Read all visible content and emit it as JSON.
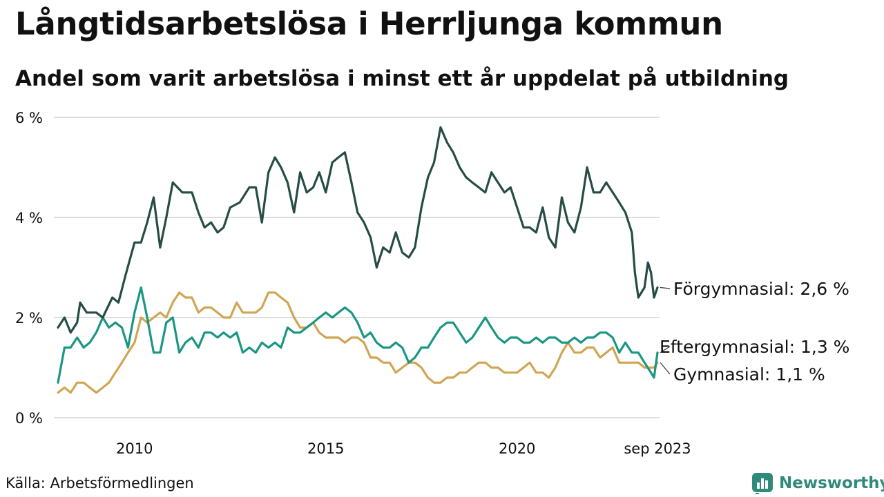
{
  "title": "Långtidsarbetslösa i Herrljunga kommun",
  "subtitle": "Andel som varit arbetslösa i minst ett år uppdelat på utbildning",
  "source": "Källa: Arbetsförmedlingen",
  "brand": "Newsworthy",
  "colors": {
    "forgymnasial": "#264d45",
    "eftergymnasial": "#1a9682",
    "gymnasial": "#d0a554",
    "grid": "#dddddd",
    "brand": "#2f8a7a"
  },
  "chart_data": {
    "type": "line",
    "title": "Långtidsarbetslösa i Herrljunga kommun",
    "xlabel": "",
    "ylabel": "",
    "ylim": [
      0,
      6
    ],
    "xlim": [
      2008.0,
      2023.67
    ],
    "y_ticks": [
      {
        "value": 0,
        "label": "0 %"
      },
      {
        "value": 2,
        "label": "2 %"
      },
      {
        "value": 4,
        "label": "4 %"
      },
      {
        "value": 6,
        "label": "6 %"
      }
    ],
    "x_ticks": [
      {
        "value": 2010.0,
        "label": "2010"
      },
      {
        "value": 2015.0,
        "label": "2015"
      },
      {
        "value": 2020.0,
        "label": "2020"
      },
      {
        "value": 2023.67,
        "label": "sep 2023"
      }
    ],
    "grid": true,
    "series": [
      {
        "key": "forgymnasial",
        "name": "Förgymnasial",
        "label": "Förgymnasial: 2,6 %",
        "last_value": 2.6,
        "points": [
          [
            2008.0,
            1.8
          ],
          [
            2008.17,
            2.0
          ],
          [
            2008.33,
            1.7
          ],
          [
            2008.5,
            1.9
          ],
          [
            2008.58,
            2.3
          ],
          [
            2008.75,
            2.1
          ],
          [
            2009.0,
            2.1
          ],
          [
            2009.17,
            2.0
          ],
          [
            2009.42,
            2.4
          ],
          [
            2009.58,
            2.3
          ],
          [
            2009.75,
            2.8
          ],
          [
            2010.0,
            3.5
          ],
          [
            2010.17,
            3.5
          ],
          [
            2010.33,
            3.9
          ],
          [
            2010.5,
            4.4
          ],
          [
            2010.67,
            3.4
          ],
          [
            2010.83,
            4.0
          ],
          [
            2011.0,
            4.7
          ],
          [
            2011.25,
            4.5
          ],
          [
            2011.5,
            4.5
          ],
          [
            2011.67,
            4.1
          ],
          [
            2011.83,
            3.8
          ],
          [
            2012.0,
            3.9
          ],
          [
            2012.17,
            3.7
          ],
          [
            2012.33,
            3.8
          ],
          [
            2012.5,
            4.2
          ],
          [
            2012.75,
            4.3
          ],
          [
            2013.0,
            4.6
          ],
          [
            2013.17,
            4.6
          ],
          [
            2013.33,
            3.9
          ],
          [
            2013.5,
            4.9
          ],
          [
            2013.67,
            5.2
          ],
          [
            2013.83,
            5.0
          ],
          [
            2014.0,
            4.7
          ],
          [
            2014.17,
            4.1
          ],
          [
            2014.33,
            4.9
          ],
          [
            2014.5,
            4.5
          ],
          [
            2014.67,
            4.6
          ],
          [
            2014.83,
            4.9
          ],
          [
            2015.0,
            4.5
          ],
          [
            2015.17,
            5.1
          ],
          [
            2015.33,
            5.2
          ],
          [
            2015.5,
            5.3
          ],
          [
            2015.67,
            4.7
          ],
          [
            2015.83,
            4.1
          ],
          [
            2016.0,
            3.9
          ],
          [
            2016.17,
            3.6
          ],
          [
            2016.33,
            3.0
          ],
          [
            2016.5,
            3.4
          ],
          [
            2016.67,
            3.3
          ],
          [
            2016.83,
            3.7
          ],
          [
            2017.0,
            3.3
          ],
          [
            2017.17,
            3.2
          ],
          [
            2017.33,
            3.4
          ],
          [
            2017.5,
            4.2
          ],
          [
            2017.67,
            4.8
          ],
          [
            2017.83,
            5.1
          ],
          [
            2018.0,
            5.8
          ],
          [
            2018.17,
            5.5
          ],
          [
            2018.33,
            5.3
          ],
          [
            2018.5,
            5.0
          ],
          [
            2018.67,
            4.8
          ],
          [
            2018.83,
            4.7
          ],
          [
            2019.0,
            4.6
          ],
          [
            2019.17,
            4.5
          ],
          [
            2019.33,
            4.9
          ],
          [
            2019.5,
            4.7
          ],
          [
            2019.67,
            4.5
          ],
          [
            2019.83,
            4.6
          ],
          [
            2020.0,
            4.2
          ],
          [
            2020.17,
            3.8
          ],
          [
            2020.33,
            3.8
          ],
          [
            2020.5,
            3.7
          ],
          [
            2020.67,
            4.2
          ],
          [
            2020.83,
            3.6
          ],
          [
            2021.0,
            3.4
          ],
          [
            2021.17,
            4.4
          ],
          [
            2021.33,
            3.9
          ],
          [
            2021.5,
            3.7
          ],
          [
            2021.67,
            4.2
          ],
          [
            2021.83,
            5.0
          ],
          [
            2022.0,
            4.5
          ],
          [
            2022.17,
            4.5
          ],
          [
            2022.33,
            4.7
          ],
          [
            2022.5,
            4.5
          ],
          [
            2022.67,
            4.3
          ],
          [
            2022.83,
            4.1
          ],
          [
            2023.0,
            3.7
          ],
          [
            2023.08,
            2.9
          ],
          [
            2023.17,
            2.4
          ],
          [
            2023.33,
            2.6
          ],
          [
            2023.42,
            3.1
          ],
          [
            2023.5,
            2.9
          ],
          [
            2023.58,
            2.4
          ],
          [
            2023.67,
            2.6
          ]
        ]
      },
      {
        "key": "eftergymnasial",
        "name": "Eftergymnasial",
        "label": "Eftergymnasial: 1,3 %",
        "last_value": 1.3,
        "points": [
          [
            2008.0,
            0.7
          ],
          [
            2008.17,
            1.4
          ],
          [
            2008.33,
            1.4
          ],
          [
            2008.5,
            1.6
          ],
          [
            2008.67,
            1.4
          ],
          [
            2008.83,
            1.5
          ],
          [
            2009.0,
            1.7
          ],
          [
            2009.17,
            2.0
          ],
          [
            2009.33,
            1.8
          ],
          [
            2009.5,
            1.9
          ],
          [
            2009.67,
            1.8
          ],
          [
            2009.83,
            1.4
          ],
          [
            2010.0,
            2.1
          ],
          [
            2010.17,
            2.6
          ],
          [
            2010.33,
            2.0
          ],
          [
            2010.5,
            1.3
          ],
          [
            2010.67,
            1.3
          ],
          [
            2010.83,
            1.9
          ],
          [
            2011.0,
            2.0
          ],
          [
            2011.17,
            1.3
          ],
          [
            2011.33,
            1.5
          ],
          [
            2011.5,
            1.6
          ],
          [
            2011.67,
            1.4
          ],
          [
            2011.83,
            1.7
          ],
          [
            2012.0,
            1.7
          ],
          [
            2012.17,
            1.6
          ],
          [
            2012.33,
            1.7
          ],
          [
            2012.5,
            1.6
          ],
          [
            2012.67,
            1.7
          ],
          [
            2012.83,
            1.3
          ],
          [
            2013.0,
            1.4
          ],
          [
            2013.17,
            1.3
          ],
          [
            2013.33,
            1.5
          ],
          [
            2013.5,
            1.4
          ],
          [
            2013.67,
            1.5
          ],
          [
            2013.83,
            1.4
          ],
          [
            2014.0,
            1.8
          ],
          [
            2014.17,
            1.7
          ],
          [
            2014.33,
            1.7
          ],
          [
            2014.5,
            1.8
          ],
          [
            2014.67,
            1.9
          ],
          [
            2014.83,
            2.0
          ],
          [
            2015.0,
            2.1
          ],
          [
            2015.17,
            2.0
          ],
          [
            2015.33,
            2.1
          ],
          [
            2015.5,
            2.2
          ],
          [
            2015.67,
            2.1
          ],
          [
            2015.83,
            1.9
          ],
          [
            2016.0,
            1.6
          ],
          [
            2016.17,
            1.7
          ],
          [
            2016.33,
            1.5
          ],
          [
            2016.5,
            1.4
          ],
          [
            2016.67,
            1.4
          ],
          [
            2016.83,
            1.5
          ],
          [
            2017.0,
            1.4
          ],
          [
            2017.17,
            1.1
          ],
          [
            2017.33,
            1.2
          ],
          [
            2017.5,
            1.4
          ],
          [
            2017.67,
            1.4
          ],
          [
            2017.83,
            1.6
          ],
          [
            2018.0,
            1.8
          ],
          [
            2018.17,
            1.9
          ],
          [
            2018.33,
            1.9
          ],
          [
            2018.5,
            1.7
          ],
          [
            2018.67,
            1.5
          ],
          [
            2018.83,
            1.6
          ],
          [
            2019.0,
            1.8
          ],
          [
            2019.17,
            2.0
          ],
          [
            2019.33,
            1.8
          ],
          [
            2019.5,
            1.6
          ],
          [
            2019.67,
            1.5
          ],
          [
            2019.83,
            1.6
          ],
          [
            2020.0,
            1.6
          ],
          [
            2020.17,
            1.5
          ],
          [
            2020.33,
            1.5
          ],
          [
            2020.5,
            1.6
          ],
          [
            2020.67,
            1.5
          ],
          [
            2020.83,
            1.6
          ],
          [
            2021.0,
            1.6
          ],
          [
            2021.17,
            1.5
          ],
          [
            2021.33,
            1.5
          ],
          [
            2021.5,
            1.6
          ],
          [
            2021.67,
            1.5
          ],
          [
            2021.83,
            1.6
          ],
          [
            2022.0,
            1.6
          ],
          [
            2022.17,
            1.7
          ],
          [
            2022.33,
            1.7
          ],
          [
            2022.5,
            1.6
          ],
          [
            2022.67,
            1.3
          ],
          [
            2022.83,
            1.5
          ],
          [
            2023.0,
            1.3
          ],
          [
            2023.17,
            1.3
          ],
          [
            2023.33,
            1.1
          ],
          [
            2023.5,
            0.9
          ],
          [
            2023.58,
            0.8
          ],
          [
            2023.67,
            1.3
          ]
        ]
      },
      {
        "key": "gymnasial",
        "name": "Gymnasial",
        "label": "Gymnasial: 1,1 %",
        "last_value": 1.1,
        "points": [
          [
            2008.0,
            0.5
          ],
          [
            2008.17,
            0.6
          ],
          [
            2008.33,
            0.5
          ],
          [
            2008.5,
            0.7
          ],
          [
            2008.67,
            0.7
          ],
          [
            2008.83,
            0.6
          ],
          [
            2009.0,
            0.5
          ],
          [
            2009.17,
            0.6
          ],
          [
            2009.33,
            0.7
          ],
          [
            2009.5,
            0.9
          ],
          [
            2009.67,
            1.1
          ],
          [
            2009.83,
            1.3
          ],
          [
            2010.0,
            1.5
          ],
          [
            2010.17,
            2.0
          ],
          [
            2010.33,
            1.9
          ],
          [
            2010.5,
            2.0
          ],
          [
            2010.67,
            2.1
          ],
          [
            2010.83,
            2.0
          ],
          [
            2011.0,
            2.3
          ],
          [
            2011.17,
            2.5
          ],
          [
            2011.33,
            2.4
          ],
          [
            2011.5,
            2.4
          ],
          [
            2011.67,
            2.1
          ],
          [
            2011.83,
            2.2
          ],
          [
            2012.0,
            2.2
          ],
          [
            2012.17,
            2.1
          ],
          [
            2012.33,
            2.0
          ],
          [
            2012.5,
            2.0
          ],
          [
            2012.67,
            2.3
          ],
          [
            2012.83,
            2.1
          ],
          [
            2013.0,
            2.1
          ],
          [
            2013.17,
            2.1
          ],
          [
            2013.33,
            2.2
          ],
          [
            2013.5,
            2.5
          ],
          [
            2013.67,
            2.5
          ],
          [
            2013.83,
            2.4
          ],
          [
            2014.0,
            2.3
          ],
          [
            2014.17,
            2.0
          ],
          [
            2014.33,
            1.8
          ],
          [
            2014.5,
            1.8
          ],
          [
            2014.67,
            1.9
          ],
          [
            2014.83,
            1.7
          ],
          [
            2015.0,
            1.6
          ],
          [
            2015.17,
            1.6
          ],
          [
            2015.33,
            1.6
          ],
          [
            2015.5,
            1.5
          ],
          [
            2015.67,
            1.6
          ],
          [
            2015.83,
            1.6
          ],
          [
            2016.0,
            1.5
          ],
          [
            2016.17,
            1.2
          ],
          [
            2016.33,
            1.2
          ],
          [
            2016.5,
            1.1
          ],
          [
            2016.67,
            1.1
          ],
          [
            2016.83,
            0.9
          ],
          [
            2017.0,
            1.0
          ],
          [
            2017.17,
            1.1
          ],
          [
            2017.33,
            1.1
          ],
          [
            2017.5,
            1.0
          ],
          [
            2017.67,
            0.8
          ],
          [
            2017.83,
            0.7
          ],
          [
            2018.0,
            0.7
          ],
          [
            2018.17,
            0.8
          ],
          [
            2018.33,
            0.8
          ],
          [
            2018.5,
            0.9
          ],
          [
            2018.67,
            0.9
          ],
          [
            2018.83,
            1.0
          ],
          [
            2019.0,
            1.1
          ],
          [
            2019.17,
            1.1
          ],
          [
            2019.33,
            1.0
          ],
          [
            2019.5,
            1.0
          ],
          [
            2019.67,
            0.9
          ],
          [
            2019.83,
            0.9
          ],
          [
            2020.0,
            0.9
          ],
          [
            2020.17,
            1.0
          ],
          [
            2020.33,
            1.1
          ],
          [
            2020.5,
            0.9
          ],
          [
            2020.67,
            0.9
          ],
          [
            2020.83,
            0.8
          ],
          [
            2021.0,
            1.0
          ],
          [
            2021.17,
            1.3
          ],
          [
            2021.33,
            1.5
          ],
          [
            2021.5,
            1.3
          ],
          [
            2021.67,
            1.3
          ],
          [
            2021.83,
            1.4
          ],
          [
            2022.0,
            1.4
          ],
          [
            2022.17,
            1.2
          ],
          [
            2022.33,
            1.3
          ],
          [
            2022.5,
            1.4
          ],
          [
            2022.67,
            1.1
          ],
          [
            2022.83,
            1.1
          ],
          [
            2023.0,
            1.1
          ],
          [
            2023.17,
            1.1
          ],
          [
            2023.33,
            1.0
          ],
          [
            2023.5,
            1.0
          ],
          [
            2023.58,
            1.0
          ],
          [
            2023.67,
            1.1
          ]
        ]
      }
    ]
  }
}
